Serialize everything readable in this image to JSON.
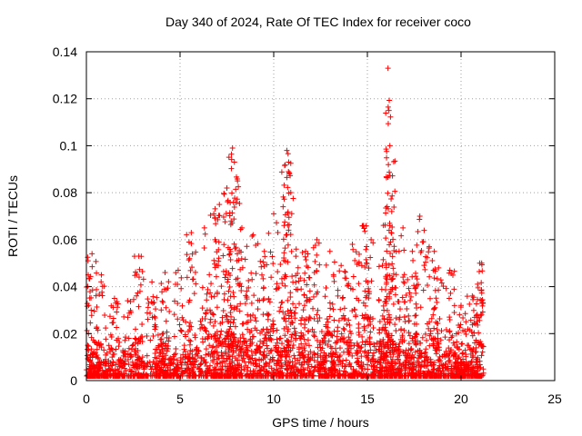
{
  "chart_data": {
    "type": "scatter",
    "title": "Day 340 of 2024, Rate Of TEC Index for receiver coco",
    "xlabel": "GPS time / hours",
    "ylabel": "ROTI / TECUs",
    "xlim": [
      0,
      25
    ],
    "ylim": [
      0,
      0.14
    ],
    "xticks": [
      0,
      5,
      10,
      15,
      20,
      25
    ],
    "yticks": [
      0,
      0.02,
      0.04,
      0.06,
      0.08,
      0.1,
      0.12,
      0.14
    ],
    "xtick_labels": [
      "0",
      "5",
      "10",
      "15",
      "20",
      "25"
    ],
    "ytick_labels": [
      "0",
      "0.02",
      "0.04",
      "0.06",
      "0.08",
      "0.1",
      "0.12",
      "0.14"
    ],
    "grid": true,
    "marker": "+",
    "color": "#ff0000",
    "series": [
      {
        "x": [
          0.1,
          0.3,
          0.8,
          1.5,
          2.2,
          2.8,
          3.5,
          4.2,
          4.9,
          5.6,
          6.3,
          6.8,
          7.1,
          7.5,
          7.8,
          7.9,
          8.3,
          8.9,
          9.5,
          10.0,
          10.5,
          10.7,
          10.8,
          11.2,
          11.7,
          12.3,
          13.0,
          13.6,
          14.2,
          14.8,
          15.2,
          15.8,
          16.1,
          16.15,
          16.2,
          16.3,
          16.9,
          17.4,
          17.8,
          18.3,
          18.8,
          19.4,
          20.0,
          20.6,
          21.0,
          21.1,
          0.4,
          1.2,
          2.6,
          4.1,
          5.3,
          6.6,
          7.7,
          8.6,
          9.7,
          10.9,
          11.9,
          12.9,
          13.9,
          14.9,
          15.9,
          16.8,
          17.6,
          18.6,
          19.6,
          20.4,
          0.2,
          0.9,
          1.8,
          3.0,
          3.9,
          4.7,
          5.9,
          7.0,
          7.6,
          8.1,
          9.1,
          10.2,
          11.4,
          12.6,
          13.3,
          14.5,
          15.5,
          16.5,
          17.2,
          18.1,
          19.1,
          19.9,
          20.8
        ],
        "y": [
          0.045,
          0.054,
          0.045,
          0.035,
          0.034,
          0.053,
          0.042,
          0.046,
          0.047,
          0.063,
          0.065,
          0.071,
          0.075,
          0.082,
          0.099,
          0.093,
          0.065,
          0.062,
          0.055,
          0.071,
          0.074,
          0.098,
          0.093,
          0.056,
          0.055,
          0.06,
          0.055,
          0.049,
          0.058,
          0.066,
          0.06,
          0.049,
          0.133,
          0.115,
          0.1,
          0.072,
          0.065,
          0.055,
          0.07,
          0.057,
          0.048,
          0.047,
          0.032,
          0.036,
          0.05,
          0.05,
          0.012,
          0.015,
          0.018,
          0.02,
          0.025,
          0.03,
          0.032,
          0.028,
          0.026,
          0.03,
          0.027,
          0.025,
          0.024,
          0.028,
          0.026,
          0.022,
          0.02,
          0.018,
          0.016,
          0.015,
          0.006,
          0.008,
          0.009,
          0.01,
          0.012,
          0.011,
          0.014,
          0.018,
          0.02,
          0.017,
          0.015,
          0.016,
          0.018,
          0.017,
          0.016,
          0.015,
          0.016,
          0.014,
          0.013,
          0.012,
          0.011,
          0.01,
          0.009
        ]
      }
    ]
  }
}
